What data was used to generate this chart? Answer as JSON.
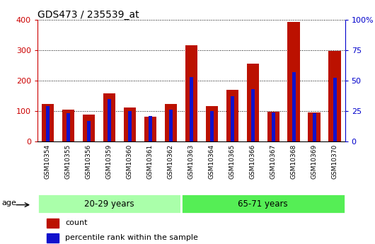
{
  "title": "GDS473 / 235539_at",
  "samples": [
    "GSM10354",
    "GSM10355",
    "GSM10356",
    "GSM10359",
    "GSM10360",
    "GSM10361",
    "GSM10362",
    "GSM10363",
    "GSM10364",
    "GSM10365",
    "GSM10366",
    "GSM10367",
    "GSM10368",
    "GSM10369",
    "GSM10370"
  ],
  "counts": [
    122,
    104,
    88,
    157,
    112,
    82,
    124,
    315,
    117,
    170,
    255,
    97,
    393,
    95,
    296
  ],
  "percentile_ranks": [
    29,
    23,
    17,
    35,
    25,
    21,
    26,
    53,
    25,
    37,
    43,
    24,
    57,
    23,
    52
  ],
  "groups": [
    {
      "label": "20-29 years",
      "start": 0,
      "end": 7,
      "color": "#aaffaa"
    },
    {
      "label": "65-71 years",
      "start": 7,
      "end": 15,
      "color": "#55ee55"
    }
  ],
  "age_label": "age",
  "ylim_left": [
    0,
    400
  ],
  "ylim_right": [
    0,
    100
  ],
  "yticks_left": [
    0,
    100,
    200,
    300,
    400
  ],
  "yticks_right": [
    0,
    25,
    50,
    75,
    100
  ],
  "count_color": "#bb1100",
  "percentile_color": "#1111cc",
  "legend_count_label": "count",
  "legend_percentile_label": "percentile rank within the sample",
  "title_fontsize": 10,
  "tick_color_left": "#cc0000",
  "tick_color_right": "#0000cc",
  "bar_width": 0.6,
  "blue_bar_width": 0.18
}
